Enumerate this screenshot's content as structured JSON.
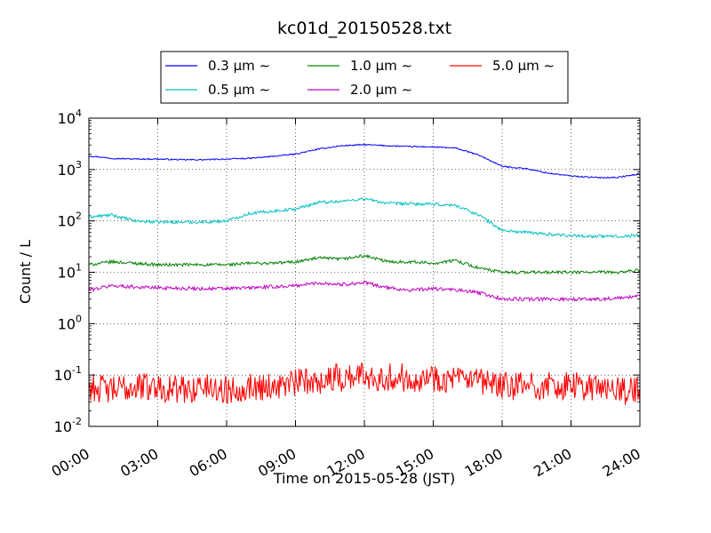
{
  "chart_data": {
    "type": "line",
    "title": "kc01d_20150528.txt",
    "xlabel": "Time on 2015-05-28 (JST)",
    "ylabel": "Count / L",
    "yscale": "log",
    "ylim": [
      0.01,
      10000
    ],
    "xlim": [
      "00:00",
      "24:00"
    ],
    "grid": true,
    "legend_position": "top-center",
    "x_tick_labels": [
      "00:00",
      "03:00",
      "06:00",
      "09:00",
      "12:00",
      "15:00",
      "18:00",
      "21:00",
      "24:00"
    ],
    "y_ticks": [
      {
        "value": 0.01,
        "base": "10",
        "exp": "-2"
      },
      {
        "value": 0.1,
        "base": "10",
        "exp": "-1"
      },
      {
        "value": 1,
        "base": "10",
        "exp": "0"
      },
      {
        "value": 10,
        "base": "10",
        "exp": "1"
      },
      {
        "value": 100,
        "base": "10",
        "exp": "2"
      },
      {
        "value": 1000,
        "base": "10",
        "exp": "3"
      },
      {
        "value": 10000,
        "base": "10",
        "exp": "4"
      }
    ],
    "x": [
      "00:00",
      "01:00",
      "02:00",
      "03:00",
      "04:00",
      "05:00",
      "06:00",
      "07:00",
      "08:00",
      "09:00",
      "10:00",
      "11:00",
      "12:00",
      "13:00",
      "14:00",
      "15:00",
      "16:00",
      "17:00",
      "18:00",
      "19:00",
      "20:00",
      "21:00",
      "22:00",
      "23:00",
      "24:00"
    ],
    "series": [
      {
        "name": "0.3 μm ∼",
        "color": "#0000ff",
        "values": [
          1850,
          1650,
          1600,
          1600,
          1550,
          1550,
          1600,
          1650,
          1800,
          2000,
          2500,
          2900,
          3050,
          2900,
          2800,
          2750,
          2600,
          1900,
          1150,
          1050,
          850,
          750,
          700,
          700,
          820
        ]
      },
      {
        "name": "0.5 μm ∼",
        "color": "#00bfbf",
        "values": [
          120,
          130,
          100,
          95,
          95,
          95,
          100,
          140,
          155,
          170,
          230,
          240,
          270,
          220,
          215,
          210,
          200,
          130,
          65,
          60,
          55,
          52,
          50,
          50,
          53
        ]
      },
      {
        "name": "1.0 μm ∼",
        "color": "#008000",
        "values": [
          14,
          16,
          15,
          14,
          14,
          14,
          14,
          15,
          15,
          16,
          19,
          18,
          21,
          16,
          16,
          15,
          17,
          12,
          10,
          10,
          10,
          10,
          10,
          10,
          11
        ]
      },
      {
        "name": "2.0 μm ∼",
        "color": "#bf00bf",
        "values": [
          4.5,
          5.5,
          5.2,
          5.0,
          4.9,
          4.8,
          4.8,
          5.0,
          5.2,
          5.5,
          6.2,
          5.8,
          6.3,
          5.0,
          4.5,
          4.8,
          4.5,
          4.0,
          3.0,
          3.0,
          3.0,
          3.0,
          3.0,
          3.1,
          3.4
        ]
      },
      {
        "name": "5.0 μm ∼",
        "color": "#ff0000",
        "values": [
          0.06,
          0.05,
          0.06,
          0.06,
          0.05,
          0.06,
          0.05,
          0.06,
          0.06,
          0.07,
          0.08,
          0.09,
          0.1,
          0.09,
          0.09,
          0.09,
          0.08,
          0.07,
          0.06,
          0.06,
          0.06,
          0.06,
          0.06,
          0.05,
          0.05
        ]
      }
    ]
  }
}
